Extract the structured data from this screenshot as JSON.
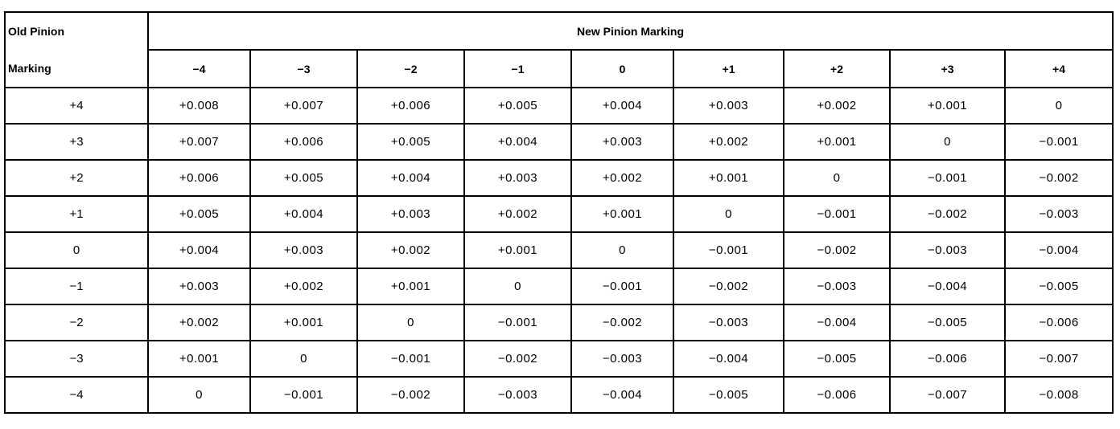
{
  "table": {
    "corner_label_line1": "Old Pinion",
    "corner_label_line2": "Marking",
    "group_header": "New Pinion Marking",
    "columns": [
      "−4",
      "−3",
      "−2",
      "−1",
      "0",
      "+1",
      "+2",
      "+3",
      "+4"
    ],
    "rows": [
      {
        "label": "+4",
        "values": [
          "+0.008",
          "+0.007",
          "+0.006",
          "+0.005",
          "+0.004",
          "+0.003",
          "+0.002",
          "+0.001",
          "0"
        ]
      },
      {
        "label": "+3",
        "values": [
          "+0.007",
          "+0.006",
          "+0.005",
          "+0.004",
          "+0.003",
          "+0.002",
          "+0.001",
          "0",
          "−0.001"
        ]
      },
      {
        "label": "+2",
        "values": [
          "+0.006",
          "+0.005",
          "+0.004",
          "+0.003",
          "+0.002",
          "+0.001",
          "0",
          "−0.001",
          "−0.002"
        ]
      },
      {
        "label": "+1",
        "values": [
          "+0.005",
          "+0.004",
          "+0.003",
          "+0.002",
          "+0.001",
          "0",
          "−0.001",
          "−0.002",
          "−0.003"
        ]
      },
      {
        "label": "0",
        "values": [
          "+0.004",
          "+0.003",
          "+0.002",
          "+0.001",
          "0",
          "−0.001",
          "−0.002",
          "−0.003",
          "−0.004"
        ]
      },
      {
        "label": "−1",
        "values": [
          "+0.003",
          "+0.002",
          "+0.001",
          "0",
          "−0.001",
          "−0.002",
          "−0.003",
          "−0.004",
          "−0.005"
        ]
      },
      {
        "label": "−2",
        "values": [
          "+0.002",
          "+0.001",
          "0",
          "−0.001",
          "−0.002",
          "−0.003",
          "−0.004",
          "−0.005",
          "−0.006"
        ]
      },
      {
        "label": "−3",
        "values": [
          "+0.001",
          "0",
          "−0.001",
          "−0.002",
          "−0.003",
          "−0.004",
          "−0.005",
          "−0.006",
          "−0.007"
        ]
      },
      {
        "label": "−4",
        "values": [
          "0",
          "−0.001",
          "−0.002",
          "−0.003",
          "−0.004",
          "−0.005",
          "−0.006",
          "−0.007",
          "−0.008"
        ]
      }
    ]
  }
}
